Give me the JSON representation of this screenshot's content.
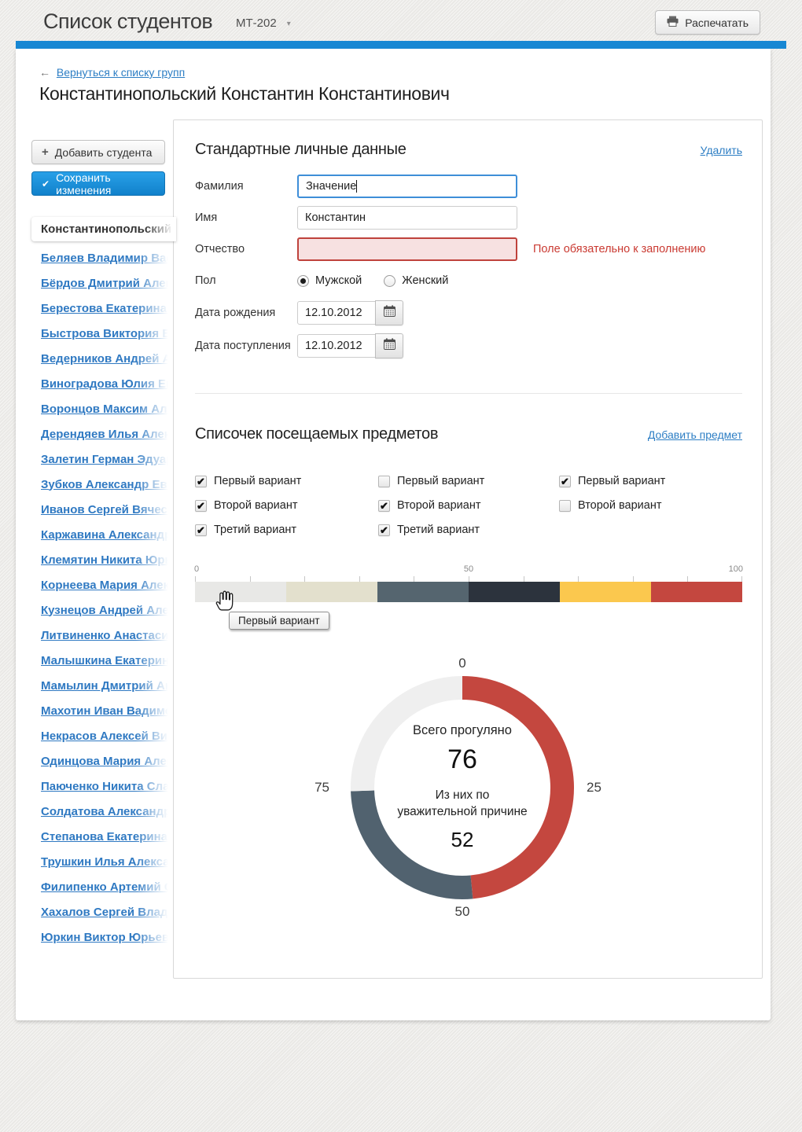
{
  "header": {
    "app_title": "Список студентов",
    "group_value": "МТ-202",
    "group_caret": "▾",
    "print_label": "Распечатать"
  },
  "nav": {
    "back_arrow": "←",
    "back_link": "Вернуться к списку групп"
  },
  "page": {
    "student_title": "Константинопольский Константин Константинович"
  },
  "sidebar": {
    "add_student_label": "Добавить студента",
    "add_student_icon": "+",
    "save_changes_label": "Сохранить изменения",
    "save_changes_icon": "✔",
    "active_student": "Константинопольский К",
    "students": [
      "Беляев Владимир Васил",
      "Бёрдов Дмитрий Алекса",
      "Берестова Екатерина В",
      "Быстрова Виктория Вла",
      "Ведерников Андрей Але",
      "Виноградова Юлия Евге",
      "Воронцов Максим Алек",
      "Дерендяев Илья Алекса",
      "Залетин Герман Эдуард",
      "Зубков Александр Евге",
      "Иванов Сергей Вячесла",
      "Каржавина Александра",
      "Клемятин Никита Юрье",
      "Корнеева Мария Алексе",
      "Кузнецов Андрей Алекс",
      "Литвиненко Анастасия",
      "Малышкина Екатерина",
      "Мамылин Дмитрий Анд",
      "Махотин Иван Вадимов",
      "Некрасов Алексей Викт",
      "Одинцова Мария Алекс",
      "Паюченко Никита Слав",
      "Солдатова Александра",
      "Степанова Екатерина Н",
      "Трушкин Илья Алексан",
      "Филипенко Артемий Се",
      "Хахалов Сергей Влади",
      "Юркин Виктор Юрьевич"
    ]
  },
  "personal": {
    "title": "Стандартные личные данные",
    "delete_label": "Удалить",
    "lastname_label": "Фамилия",
    "lastname_value": "Значение",
    "firstname_label": "Имя",
    "firstname_value": "Константин",
    "patronymic_label": "Отчество",
    "patronymic_value": "",
    "patronymic_error": "Поле обязательно к заполнению",
    "gender_label": "Пол",
    "gender_male": "Мужской",
    "gender_female": "Женский",
    "gender_selected": "Мужской",
    "birthdate_label": "Дата рождения",
    "birthdate_value": "12.10.2012",
    "enrolldate_label": "Дата поступления",
    "enrolldate_value": "12.10.2012"
  },
  "subjects": {
    "title": "Списочек посещаемых предметов",
    "add_label": "Добавить предмет",
    "checkbox_columns": [
      [
        {
          "label": "Первый вариант",
          "checked": true
        },
        {
          "label": "Второй вариант",
          "checked": true
        },
        {
          "label": "Третий вариант",
          "checked": true
        }
      ],
      [
        {
          "label": "Первый вариант",
          "checked": false
        },
        {
          "label": "Второй вариант",
          "checked": true
        },
        {
          "label": "Третий вариант",
          "checked": true
        }
      ],
      [
        {
          "label": "Первый вариант",
          "checked": true
        },
        {
          "label": "Второй вариант",
          "checked": false
        }
      ]
    ]
  },
  "chart_data": [
    {
      "type": "bar",
      "orientation": "horizontal-stacked",
      "xlim": [
        0,
        100
      ],
      "axis_ticks": [
        0,
        50,
        100
      ],
      "minor_tick_step": 10,
      "grid": false,
      "tooltip_visible": "Первый вариант",
      "segments": [
        {
          "label": "Первый вариант",
          "value": 16.7,
          "color": "#e8e8e6"
        },
        {
          "value": 16.7,
          "color": "#e3e0cd"
        },
        {
          "value": 16.6,
          "color": "#55656f"
        },
        {
          "value": 16.7,
          "color": "#2c333d"
        },
        {
          "value": 16.6,
          "color": "#fbc84e"
        },
        {
          "value": 16.7,
          "color": "#c4473f"
        }
      ]
    },
    {
      "type": "pie",
      "donut": true,
      "start_angle_deg": 0,
      "direction": "clockwise",
      "axis_labels": [
        "0",
        "25",
        "50",
        "75"
      ],
      "segments": [
        {
          "name": "absences",
          "value": 48.5,
          "color": "#c4473f"
        },
        {
          "name": "excused",
          "value": 26,
          "color": "#51626f"
        },
        {
          "name": "remainder",
          "value": 25.5,
          "color": "#efefef"
        }
      ],
      "center": {
        "line1": "Всего прогуляно",
        "total": "76",
        "line2": "Из них по",
        "line3": "уважительной причине",
        "excused": "52"
      }
    }
  ],
  "colors": {
    "accent_bar": "#1787d3",
    "link": "#2d7ec4",
    "save_button": "#1b93dd",
    "error_text": "#ca3a32",
    "error_border": "#bf423c",
    "focus_border": "#3e8ed8"
  }
}
